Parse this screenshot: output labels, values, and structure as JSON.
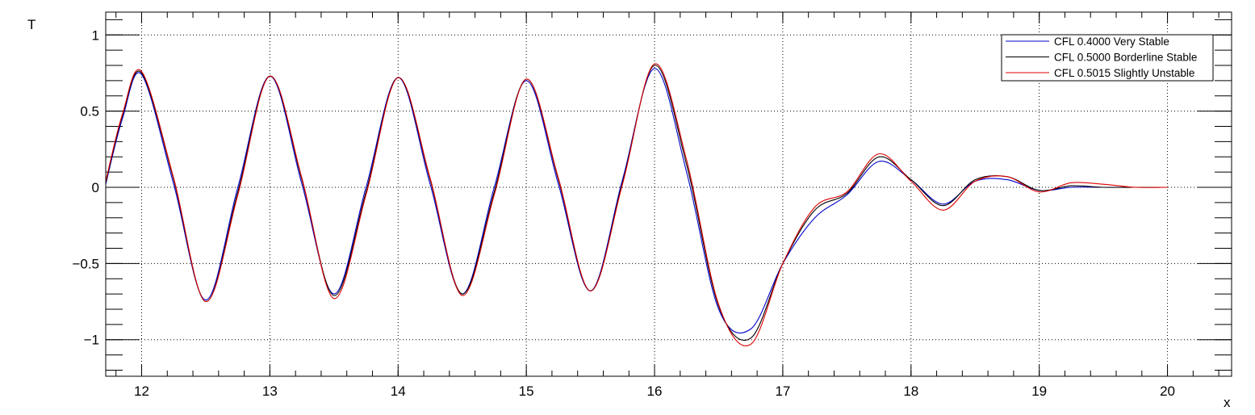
{
  "chart_data": {
    "type": "line",
    "xlabel": "x",
    "ylabel": "T",
    "xlim": [
      11.72,
      20.5
    ],
    "ylim": [
      -1.24,
      1.15
    ],
    "xticks": [
      12,
      13,
      14,
      15,
      16,
      17,
      18,
      19,
      20
    ],
    "xtick_labels": [
      "12",
      "13",
      "14",
      "15",
      "16",
      "17",
      "18",
      "19",
      "20"
    ],
    "yticks": [
      -1,
      -0.5,
      0,
      0.5,
      1
    ],
    "ytick_labels": [
      "−1",
      "−0.5",
      "0",
      "0.5",
      "1"
    ],
    "grid": true,
    "legend_position": "top-right",
    "series": [
      {
        "name": "CFL 0.4000 Very Stable",
        "color": "#0000cc",
        "x": [
          11.72,
          11.85,
          12.0,
          12.25,
          12.5,
          12.75,
          13.0,
          13.25,
          13.5,
          13.75,
          14.0,
          14.25,
          14.5,
          14.75,
          15.0,
          15.25,
          15.5,
          15.75,
          16.0,
          16.25,
          16.5,
          16.75,
          17.0,
          17.25,
          17.5,
          17.75,
          18.0,
          18.25,
          18.5,
          18.75,
          19.0,
          19.25,
          19.5,
          19.75,
          20.0
        ],
        "y": [
          0.02,
          0.45,
          0.74,
          0.02,
          -0.74,
          0.0,
          0.73,
          0.02,
          -0.7,
          0.0,
          0.72,
          0.02,
          -0.7,
          0.0,
          0.7,
          0.02,
          -0.68,
          0.05,
          0.78,
          0.1,
          -0.8,
          -0.93,
          -0.5,
          -0.2,
          -0.05,
          0.17,
          0.05,
          -0.11,
          0.04,
          0.05,
          -0.02,
          0.0,
          0.0,
          0.0,
          0.0
        ]
      },
      {
        "name": "CFL 0.5000 Borderline Stable",
        "color": "#000000",
        "x": [
          11.72,
          11.85,
          12.0,
          12.25,
          12.5,
          12.75,
          13.0,
          13.25,
          13.5,
          13.75,
          14.0,
          14.25,
          14.5,
          14.75,
          15.0,
          15.25,
          15.5,
          15.75,
          16.0,
          16.25,
          16.5,
          16.75,
          17.0,
          17.25,
          17.5,
          17.75,
          18.0,
          18.25,
          18.5,
          18.75,
          19.0,
          19.25,
          19.5,
          19.75,
          20.0
        ],
        "y": [
          0.03,
          0.47,
          0.75,
          0.05,
          -0.75,
          -0.03,
          0.73,
          0.05,
          -0.71,
          -0.03,
          0.72,
          0.05,
          -0.7,
          -0.03,
          0.71,
          0.05,
          -0.68,
          0.03,
          0.8,
          0.15,
          -0.78,
          -0.99,
          -0.5,
          -0.15,
          -0.04,
          0.2,
          0.05,
          -0.12,
          0.05,
          0.07,
          -0.02,
          0.01,
          0.0,
          0.0,
          0.0
        ]
      },
      {
        "name": "CFL 0.5015 Slightly Unstable",
        "color": "#dd0000",
        "x": [
          11.72,
          11.85,
          12.0,
          12.25,
          12.5,
          12.75,
          13.0,
          13.25,
          13.5,
          13.75,
          14.0,
          14.25,
          14.5,
          14.75,
          15.0,
          15.25,
          15.5,
          15.75,
          16.0,
          16.25,
          16.5,
          16.75,
          17.0,
          17.25,
          17.5,
          17.75,
          18.0,
          18.25,
          18.5,
          18.75,
          19.0,
          19.25,
          19.5,
          19.75,
          20.0
        ],
        "y": [
          0.04,
          0.48,
          0.76,
          0.06,
          -0.75,
          -0.05,
          0.73,
          0.06,
          -0.73,
          -0.05,
          0.72,
          0.06,
          -0.71,
          -0.05,
          0.71,
          0.06,
          -0.68,
          0.02,
          0.81,
          0.18,
          -0.77,
          -1.03,
          -0.5,
          -0.13,
          -0.03,
          0.22,
          0.04,
          -0.15,
          0.04,
          0.07,
          -0.03,
          0.03,
          0.02,
          0.0,
          0.0
        ]
      }
    ]
  }
}
